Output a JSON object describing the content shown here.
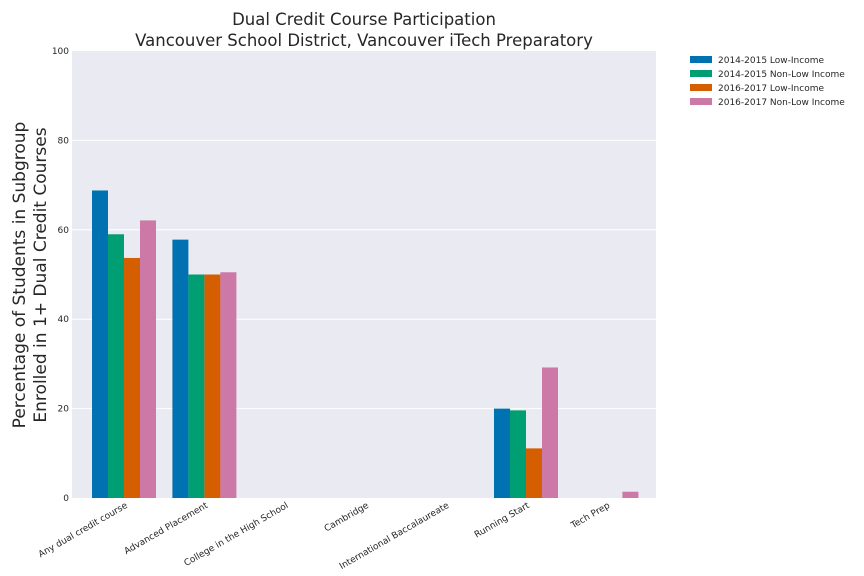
{
  "chart_data": {
    "type": "bar",
    "title": [
      "Dual Credit Course Participation",
      "Vancouver School District, Vancouver iTech Preparatory"
    ],
    "xlabel": "",
    "ylabel": [
      "Percentage of Students in Subgroup",
      "Enrolled in 1+ Dual Credit Courses"
    ],
    "ylim": [
      0,
      100
    ],
    "yticks": [
      0,
      20,
      40,
      60,
      80,
      100
    ],
    "grid": true,
    "legend_position": "outside-top-right",
    "categories": [
      "Any dual credit course",
      "Advanced Placement",
      "College in the High School",
      "Cambridge",
      "International Baccalaureate",
      "Running Start",
      "Tech Prep"
    ],
    "series": [
      {
        "name": "2014-2015 Low-Income",
        "color": "#0072b2",
        "values": [
          68.8,
          57.8,
          0,
          0,
          0,
          20.0,
          0
        ]
      },
      {
        "name": "2014-2015 Non-Low Income",
        "color": "#009e73",
        "values": [
          59.0,
          50.0,
          0,
          0,
          0,
          19.6,
          0
        ]
      },
      {
        "name": "2016-2017 Low-Income",
        "color": "#d55e00",
        "values": [
          53.7,
          50.0,
          0,
          0,
          0,
          11.1,
          0
        ]
      },
      {
        "name": "2016-2017 Non-Low Income",
        "color": "#cc79a7",
        "values": [
          62.1,
          50.5,
          0,
          0,
          0,
          29.2,
          1.4
        ]
      }
    ]
  }
}
